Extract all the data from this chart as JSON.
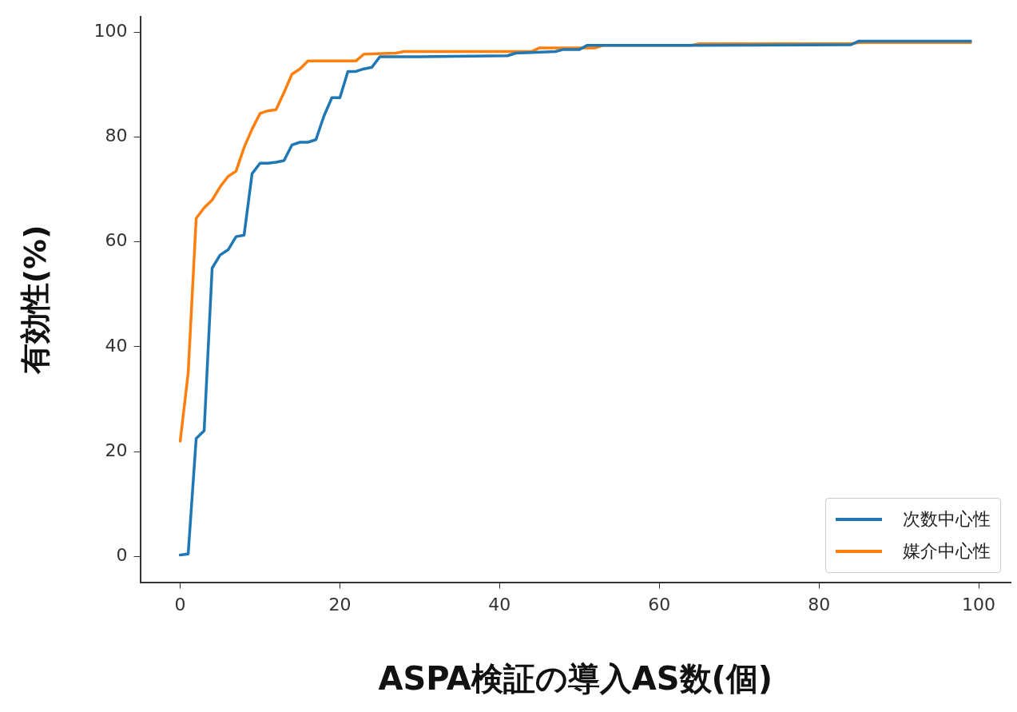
{
  "chart_data": {
    "type": "line",
    "xlabel": "ASPA検証の導入AS数(個)",
    "ylabel": "有効性(%)",
    "xlim": [
      -5,
      104
    ],
    "xticks": [
      0,
      20,
      40,
      60,
      80,
      100
    ],
    "ylim": [
      -4.9,
      102.9
    ],
    "yticks": [
      0,
      20,
      40,
      60,
      80,
      100
    ],
    "grid": false,
    "legend": "bottom right",
    "marker": "none",
    "line_style": "solid",
    "series": [
      {
        "name": "次数中心性",
        "color": "#1f77b4",
        "x": [
          0,
          1,
          2,
          3,
          4,
          5,
          6,
          7,
          8,
          9,
          10,
          11,
          12,
          13,
          14,
          15,
          16,
          17,
          18,
          19,
          20,
          21,
          22,
          23,
          24,
          25,
          30,
          41,
          42,
          47,
          48,
          50,
          51,
          55,
          65,
          84,
          85,
          99
        ],
        "values": [
          0.3,
          0.5,
          22.5,
          24,
          55,
          57.5,
          58.5,
          61,
          61.3,
          73,
          75,
          75,
          75.2,
          75.5,
          78.5,
          79,
          79,
          79.5,
          84,
          87.5,
          87.5,
          92.5,
          92.5,
          93,
          93.3,
          95.3,
          95.3,
          95.5,
          96,
          96.3,
          96.7,
          96.7,
          97.5,
          97.5,
          97.5,
          97.6,
          98.3,
          98.3
        ]
      },
      {
        "name": "媒介中心性",
        "color": "#ff7f0e",
        "x": [
          0,
          1,
          2,
          3,
          4,
          5,
          6,
          7,
          8,
          9,
          10,
          11,
          12,
          13,
          14,
          15,
          16,
          22,
          23,
          27,
          28,
          44,
          45,
          52,
          53,
          64,
          65,
          84,
          85,
          99
        ],
        "values": [
          22,
          35,
          64.5,
          66.5,
          68,
          70.5,
          72.5,
          73.5,
          78,
          81.5,
          84.5,
          85,
          85.2,
          88.5,
          92,
          93,
          94.5,
          94.5,
          95.8,
          96,
          96.3,
          96.3,
          97,
          97,
          97.5,
          97.5,
          97.8,
          97.8,
          98,
          98
        ]
      }
    ]
  }
}
